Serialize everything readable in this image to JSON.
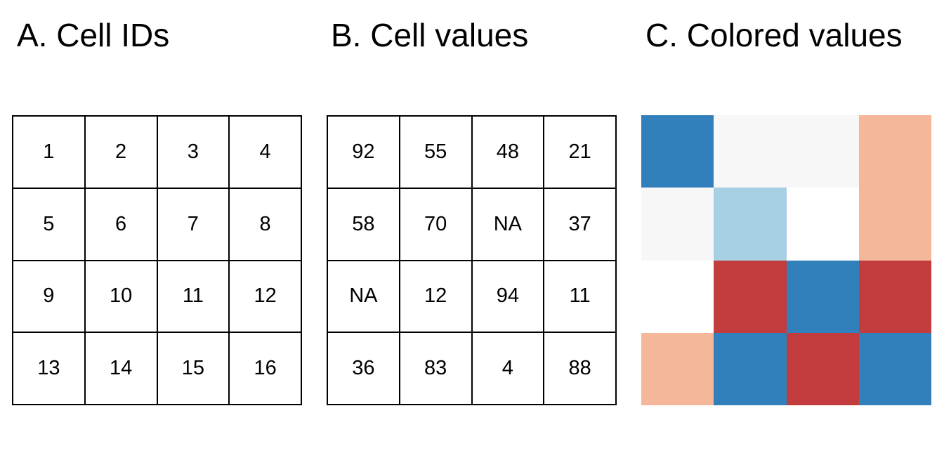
{
  "panels": {
    "a": {
      "title": "A. Cell IDs",
      "cells": [
        "1",
        "2",
        "3",
        "4",
        "5",
        "6",
        "7",
        "8",
        "9",
        "10",
        "11",
        "12",
        "13",
        "14",
        "15",
        "16"
      ]
    },
    "b": {
      "title": "B. Cell values",
      "cells": [
        "92",
        "55",
        "48",
        "21",
        "58",
        "70",
        "NA",
        "37",
        "NA",
        "12",
        "94",
        "11",
        "36",
        "83",
        "4",
        "88"
      ]
    },
    "c": {
      "title": "C. Colored values",
      "cell_colors": [
        "#3280bb",
        "#f7f7f7",
        "#f7f7f7",
        "#f5b799",
        "#f7f7f7",
        "#a7d0e4",
        "#ffffff",
        "#f5b799",
        "#ffffff",
        "#c33c3d",
        "#3280bb",
        "#c33c3d",
        "#f5b799",
        "#3280bb",
        "#c33c3d",
        "#3280bb"
      ]
    }
  }
}
